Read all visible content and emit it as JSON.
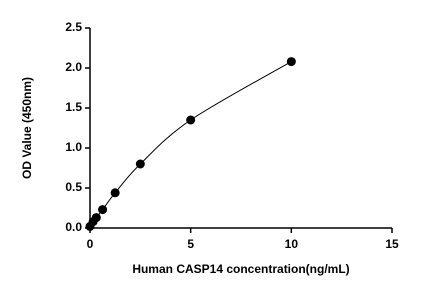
{
  "chart_data": {
    "type": "scatter",
    "x_label": "Human CASP14 concentration(ng/mL)",
    "y_label": "OD Value (450nm)",
    "x": [
      0,
      0.156,
      0.3125,
      0.625,
      1.25,
      2.5,
      5,
      10
    ],
    "values": [
      0.02,
      0.08,
      0.13,
      0.23,
      0.44,
      0.8,
      1.35,
      2.08
    ],
    "color": "#000000",
    "fit_curve": true,
    "xlim": [
      0,
      15
    ],
    "xticks": [
      0,
      5,
      10,
      15
    ],
    "ylim": [
      0,
      2.5
    ],
    "yticks": [
      {
        "value": 0,
        "label": "0.0"
      },
      0.5,
      {
        "value": 1,
        "label": "1.0"
      },
      1.5,
      {
        "value": 2,
        "label": "2.0"
      },
      2.5
    ]
  }
}
